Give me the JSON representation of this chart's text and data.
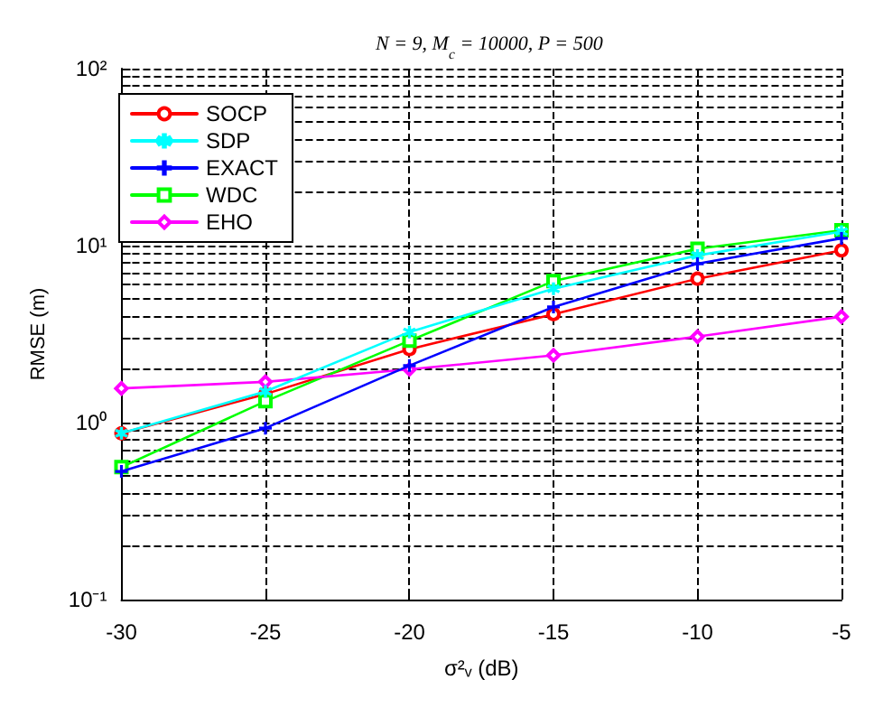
{
  "chart_data": {
    "type": "line",
    "title": "N = 9, M$_{c}$ = 10000, P = 500",
    "xlabel": "σ²ᵥ (dB)",
    "ylabel": "RMSE (m)",
    "x": [
      -30,
      -25,
      -20,
      -15,
      -10,
      -5
    ],
    "series": [
      {
        "name": "SOCP",
        "color": "#ff0000",
        "marker": "circle",
        "values": [
          0.87,
          1.45,
          2.6,
          4.1,
          6.5,
          9.4
        ]
      },
      {
        "name": "SDP",
        "color": "#00ffff",
        "marker": "star",
        "values": [
          0.87,
          1.5,
          3.25,
          5.7,
          8.8,
          12
        ]
      },
      {
        "name": "EXACT",
        "color": "#0000ff",
        "marker": "cross",
        "values": [
          0.53,
          0.93,
          2.1,
          4.5,
          7.9,
          11
        ]
      },
      {
        "name": "WDC",
        "color": "#00ff00",
        "marker": "square",
        "values": [
          0.56,
          1.32,
          2.9,
          6.3,
          9.6,
          12.2
        ]
      },
      {
        "name": "EHO",
        "color": "#ff00ff",
        "marker": "diamond",
        "values": [
          1.56,
          1.7,
          2.0,
          2.4,
          3.06,
          3.97
        ]
      }
    ],
    "log": "y",
    "xlim": [
      -30,
      -5
    ],
    "xticks": [
      -30,
      -25,
      -20,
      -15,
      -10,
      -5
    ],
    "ylim": [
      0.1,
      100
    ],
    "yticks": [
      {
        "value": 0.1,
        "label": "10⁻¹"
      },
      {
        "value": 0.2,
        "label": null
      },
      {
        "value": 0.3,
        "label": null
      },
      {
        "value": 0.4,
        "label": null
      },
      {
        "value": 0.5,
        "label": null
      },
      {
        "value": 0.6,
        "label": null
      },
      {
        "value": 0.7,
        "label": null
      },
      {
        "value": 0.8,
        "label": null
      },
      {
        "value": 0.9,
        "label": null
      },
      {
        "value": 1,
        "label": "10⁰"
      },
      {
        "value": 2,
        "label": null
      },
      {
        "value": 3,
        "label": null
      },
      {
        "value": 4,
        "label": null
      },
      {
        "value": 5,
        "label": null
      },
      {
        "value": 6,
        "label": null
      },
      {
        "value": 7,
        "label": null
      },
      {
        "value": 8,
        "label": null
      },
      {
        "value": 9,
        "label": null
      },
      {
        "value": 10,
        "label": "10¹"
      },
      {
        "value": 20,
        "label": null
      },
      {
        "value": 30,
        "label": null
      },
      {
        "value": 40,
        "label": null
      },
      {
        "value": 50,
        "label": null
      },
      {
        "value": 60,
        "label": null
      },
      {
        "value": 70,
        "label": null
      },
      {
        "value": 80,
        "label": null
      },
      {
        "value": 90,
        "label": null
      },
      {
        "value": 100,
        "label": "10²"
      }
    ],
    "grid": true,
    "legend": "top left",
    "line_style": "solid"
  }
}
